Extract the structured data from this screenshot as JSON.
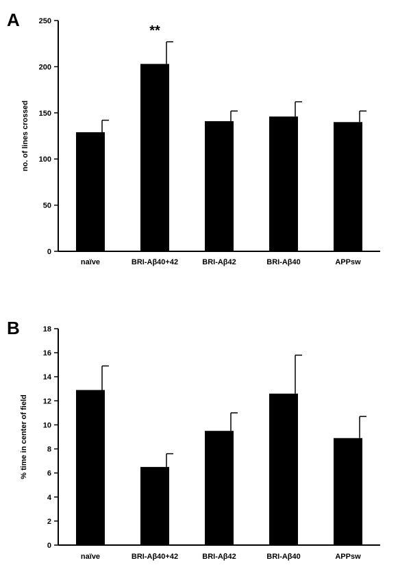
{
  "chart_data": [
    {
      "type": "bar",
      "panel": "A",
      "categories": [
        "naïve",
        "BRI-Aβ40+42",
        "BRI-Aβ42",
        "BRI-Aβ40",
        "APPsw"
      ],
      "values": [
        129,
        203,
        141,
        146,
        140
      ],
      "errors": [
        13,
        24,
        11,
        16,
        12
      ],
      "annotations": [
        {
          "category_index": 1,
          "text": "**"
        }
      ],
      "xlabel": "",
      "ylabel": "no. of lines crossed",
      "ylim": [
        0,
        250
      ],
      "yticks": [
        0,
        50,
        100,
        150,
        200,
        250
      ],
      "bar_color": "#000000",
      "grid": false
    },
    {
      "type": "bar",
      "panel": "B",
      "categories": [
        "naïve",
        "BRI-Aβ40+42",
        "BRI-Aβ42",
        "BRI-Aβ40",
        "APPsw"
      ],
      "values": [
        12.9,
        6.5,
        9.5,
        12.6,
        8.9
      ],
      "errors": [
        2.0,
        1.1,
        1.5,
        3.2,
        1.8
      ],
      "annotations": [],
      "xlabel": "",
      "ylabel": "% time in center of field",
      "ylim": [
        0,
        18
      ],
      "yticks": [
        0,
        2,
        4,
        6,
        8,
        10,
        12,
        14,
        16,
        18
      ],
      "bar_color": "#000000",
      "grid": false
    }
  ]
}
